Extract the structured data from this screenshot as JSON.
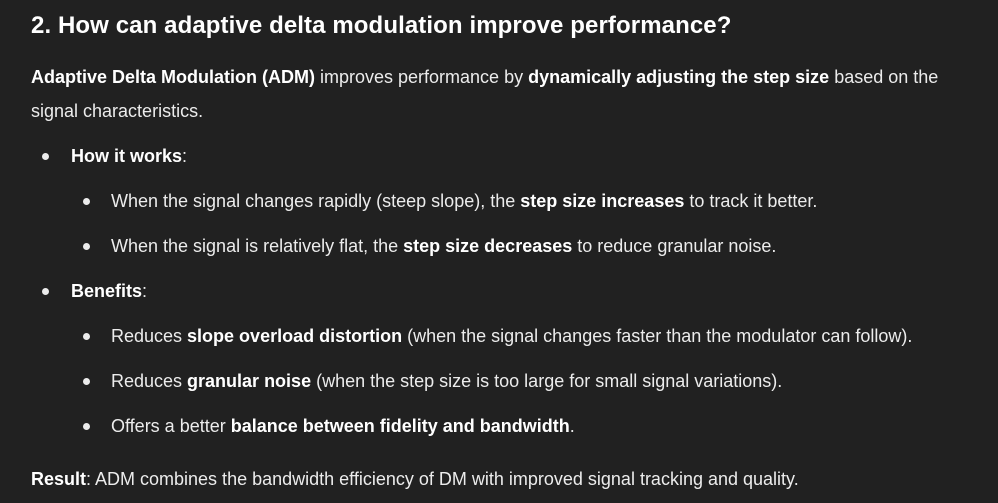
{
  "heading": "2. How can adaptive delta modulation improve performance?",
  "intro": {
    "p1_bold": "Adaptive Delta Modulation (ADM)",
    "p1_text1": " improves performance by ",
    "p1_bold2": "dynamically adjusting the step size",
    "p1_text2": " based on the signal characteristics."
  },
  "how": {
    "label": "How it works",
    "colon": ":",
    "items": [
      {
        "pre": "When the signal changes rapidly (steep slope), the ",
        "bold": "step size increases",
        "post": " to track it better."
      },
      {
        "pre": "When the signal is relatively flat, the ",
        "bold": "step size decreases",
        "post": " to reduce granular noise."
      }
    ]
  },
  "benefits": {
    "label": "Benefits",
    "colon": ":",
    "items": [
      {
        "pre": "Reduces ",
        "bold": "slope overload distortion",
        "post": " (when the signal changes faster than the modulator can follow)."
      },
      {
        "pre": "Reduces ",
        "bold": "granular noise",
        "post": " (when the step size is too large for small signal variations)."
      },
      {
        "pre": "Offers a better ",
        "bold": "balance between fidelity and bandwidth",
        "post": "."
      }
    ]
  },
  "result": {
    "label": "Result",
    "text": ": ADM combines the bandwidth efficiency of DM with improved signal tracking and quality."
  }
}
